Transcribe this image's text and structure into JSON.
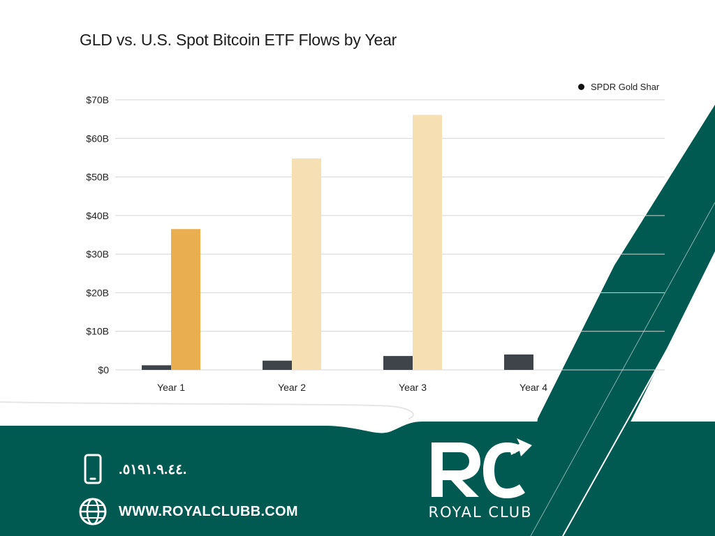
{
  "chart_data": {
    "type": "bar",
    "title": "GLD vs. U.S. Spot Bitcoin ETF Flows by Year",
    "categories": [
      "Year 1",
      "Year 2",
      "Year 3",
      "Year 4"
    ],
    "series": [
      {
        "name": "SPDR Gold Shar",
        "color": "#3e4449",
        "values": [
          1.2,
          2.4,
          3.6,
          4.0
        ]
      },
      {
        "color": "#e9ae4f",
        "values": [
          36.5,
          null,
          null,
          null
        ]
      },
      {
        "color": "#f6dfb3",
        "values": [
          null,
          54.8,
          66.1,
          null
        ]
      }
    ],
    "yticks": [
      "$0",
      "$10B",
      "$20B",
      "$30B",
      "$40B",
      "$50B",
      "$60B",
      "$70B"
    ],
    "ylim": [
      0,
      70
    ],
    "grid": true,
    "legend": "top-right"
  },
  "contact": {
    "phone": ".٥١٩١.٩.٤٤.",
    "website": "WWW.ROYALCLUBB.COM"
  },
  "brand": {
    "name": "ROYAL CLUB",
    "colors": {
      "primary": "#005a52",
      "white": "#ffffff"
    }
  }
}
